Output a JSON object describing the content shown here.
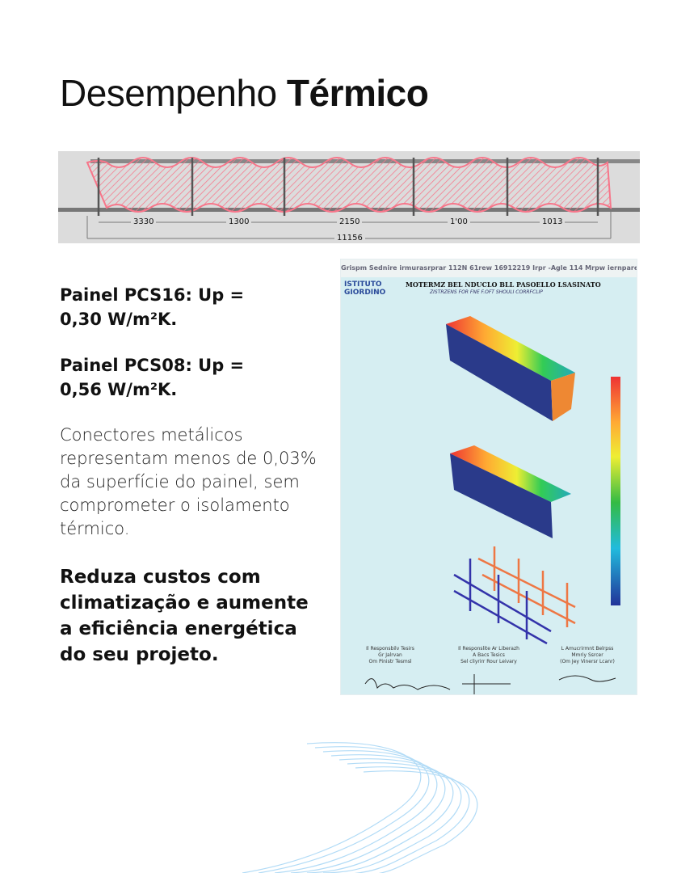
{
  "title": {
    "light": "Desempenho ",
    "bold": "Térmico"
  },
  "diagram": {
    "dimensions": [
      "3330",
      "1300",
      "2150",
      "1'00",
      "1013"
    ],
    "total": "11156",
    "panel_color": "#f7768a"
  },
  "text": {
    "pcs16": "Painel PCS16: Up = 0,30 W/m²K.",
    "pcs08": "Painel PCS08: Up = 0,56 W/m²K.",
    "connectors": "Conectores metálicos representam menos de 0,03% da superfície do painel, sem comprometer o isolamento térmico.",
    "cta": "Reduza custos com climatização e aumente a eficiência energética do seu projeto."
  },
  "report": {
    "header": "Grispm Sednire irmurasrprar 112N 61rew 16912219     Irpr -Agle 114 Mrpw iernpare",
    "logo_line1": "ISTITUTO",
    "logo_line2": "GIORDINO",
    "title": "MOTERMZ BEL NDUCLO BLL PASOELLO LSASINATO",
    "subtitle": "ZISTRZENS FOR FNE F.OFT SHOULI CORRFCLIP",
    "footers": [
      {
        "l1": "Il Responsbilv Tesirs",
        "l2": "Gr Jalrvan",
        "l3": "Om Pinistr Tesmsl"
      },
      {
        "l1": "Il Responslite Ar Liberazh",
        "l2": "A Bacs Tesics",
        "l3": "Sel cliyrirr Rour Leivary"
      },
      {
        "l1": "L Amucrirmnt Belrpss",
        "l2": "Mmriy Ssrcer",
        "l3": "(Om Jey Vinersr Lcanr)"
      }
    ]
  }
}
